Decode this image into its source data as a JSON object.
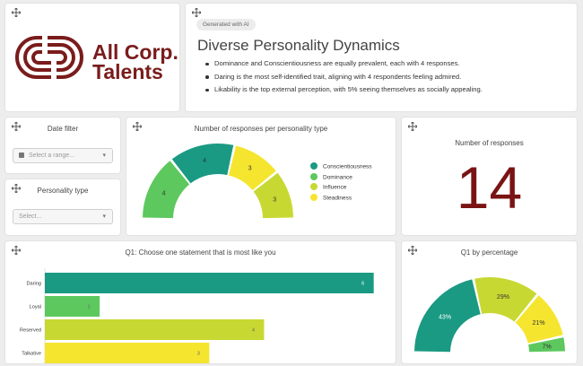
{
  "logo": {
    "line1": "All Corp.",
    "line2": "Talents"
  },
  "ai_summary": {
    "badge": "Generated with AI",
    "title": "Diverse Personality Dynamics",
    "bullets": [
      "Dominance and Conscientiousness are equally prevalent, each with 4 responses.",
      "Daring is the most self-identified trait, aligning with 4 respondents feeling admired.",
      "Likability is the top external perception, with 5% seeing themselves as socially appealing."
    ]
  },
  "date_filter": {
    "title": "Date filter",
    "placeholder": "Select a range..."
  },
  "personality_filter": {
    "title": "Personality type",
    "placeholder": "Select..."
  },
  "responses_per_type": {
    "title": "Number of responses per personality type"
  },
  "responses_count": {
    "title": "Number of responses",
    "value": "14"
  },
  "q1_bar": {
    "title": "Q1: Choose one statement that is most like you"
  },
  "q1_pie": {
    "title": "Q1 by percentage"
  },
  "colors": {
    "teal": "#1a9a82",
    "green": "#5cc85e",
    "lime": "#c8d832",
    "yellow": "#f5e52f",
    "maroon": "#7a1414"
  },
  "chart_data": [
    {
      "type": "pie",
      "variant": "semi-donut",
      "title": "Number of responses per personality type",
      "categories": [
        "Dominance",
        "Conscientiousness",
        "Steadiness",
        "Influence"
      ],
      "values": [
        4,
        4,
        3,
        3
      ],
      "legend": [
        "Conscientiousness",
        "Dominance",
        "Influence",
        "Steadiness"
      ],
      "legend_placement": "right"
    },
    {
      "type": "bar",
      "orientation": "horizontal",
      "title": "Q1: Choose one statement that is most like you",
      "categories": [
        "Daring",
        "Loyal",
        "Reserved",
        "Talkative"
      ],
      "values": [
        6,
        1,
        4,
        3
      ],
      "xlim": [
        0,
        6.3
      ]
    },
    {
      "type": "pie",
      "variant": "semi-donut",
      "title": "Q1 by percentage",
      "categories": [
        "Daring",
        "Reserved",
        "Talkative",
        "Loyal"
      ],
      "values": [
        43,
        29,
        21,
        7
      ],
      "labels": [
        "43%",
        "29%",
        "21%",
        "7%"
      ]
    }
  ]
}
